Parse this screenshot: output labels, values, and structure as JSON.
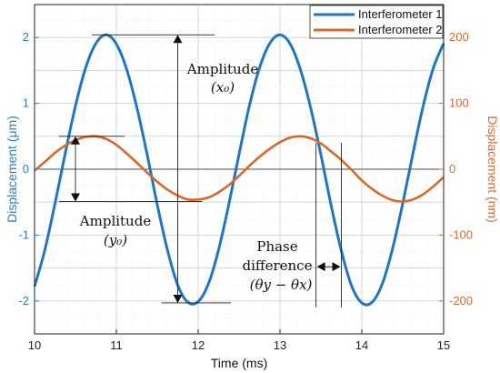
{
  "chart_data": {
    "type": "line",
    "xlabel": "Time (ms)",
    "ylabel_left": "Displacement (μm)",
    "ylabel_right": "Displacement (nm)",
    "xlim": [
      10,
      15
    ],
    "ylim_left": [
      -2.5,
      2.5
    ],
    "ylim_right": [
      -250,
      250
    ],
    "xticks": [
      "10",
      "11",
      "12",
      "13",
      "14",
      "15"
    ],
    "yticks_left": [
      "2",
      "1",
      "0",
      "-1",
      "-2"
    ],
    "yticks_right": [
      "200",
      "100",
      "0",
      "-100",
      "-200"
    ],
    "grid": true,
    "legend_position": "top-right",
    "series": [
      {
        "name": "Interferometer 1",
        "axis": "left",
        "color": "#1f77c4",
        "x": [
          10.0,
          10.125,
          10.25,
          10.375,
          10.5,
          10.625,
          10.75,
          10.875,
          11.0,
          11.125,
          11.25,
          11.375,
          11.5,
          11.625,
          11.75,
          11.875,
          12.0,
          12.125,
          12.25,
          12.375,
          12.5,
          12.625,
          12.75,
          12.875,
          13.0,
          13.125,
          13.25,
          13.375,
          13.5,
          13.625,
          13.75,
          13.875,
          14.0,
          14.125,
          14.25,
          14.375,
          14.5,
          14.625,
          14.75,
          14.875,
          15.0
        ],
        "values": [
          -1.78,
          -1.23,
          -0.52,
          0.24,
          0.96,
          1.54,
          1.91,
          2.04,
          1.9,
          1.52,
          0.94,
          0.23,
          -0.54,
          -1.23,
          -1.76,
          -2.02,
          -2.01,
          -1.74,
          -1.22,
          -0.53,
          0.23,
          0.96,
          1.54,
          1.91,
          2.04,
          1.9,
          1.51,
          0.93,
          0.22,
          -0.55,
          -1.24,
          -1.77,
          -2.03,
          -2.02,
          -1.74,
          -1.21,
          -0.52,
          0.24,
          0.96,
          1.54,
          1.91
        ]
      },
      {
        "name": "Interferometer 2",
        "axis": "right",
        "color": "#d9692b",
        "x": [
          10.0,
          10.125,
          10.25,
          10.375,
          10.5,
          10.625,
          10.75,
          10.875,
          11.0,
          11.125,
          11.25,
          11.375,
          11.5,
          11.625,
          11.75,
          11.875,
          12.0,
          12.125,
          12.25,
          12.375,
          12.5,
          12.625,
          12.75,
          12.875,
          13.0,
          13.125,
          13.25,
          13.375,
          13.5,
          13.625,
          13.75,
          13.875,
          14.0,
          14.125,
          14.25,
          14.375,
          14.5,
          14.625,
          14.75,
          14.875,
          15.0
        ],
        "values": [
          -2,
          11,
          25,
          36,
          44,
          49,
          50,
          46,
          37,
          24,
          10,
          -5,
          -19,
          -31,
          -40,
          -46,
          -46,
          -43,
          -35,
          -24,
          -10,
          5,
          19,
          31,
          41,
          48,
          50,
          47,
          39,
          27,
          14,
          -1,
          -17,
          -30,
          -40,
          -47,
          -49,
          -46,
          -38,
          -26,
          -12
        ]
      }
    ],
    "annotations": {
      "amp_x_word": "Amplitude",
      "amp_x_symbol": "(x₀)",
      "amp_y_word": "Amplitude",
      "amp_y_symbol": "(y₀)",
      "phase_word1": "Phase",
      "phase_word2": "difference",
      "phase_symbol": "(θy − θx)"
    },
    "legend": {
      "item1": "Interferometer 1",
      "item2": "Interferometer 2"
    }
  }
}
